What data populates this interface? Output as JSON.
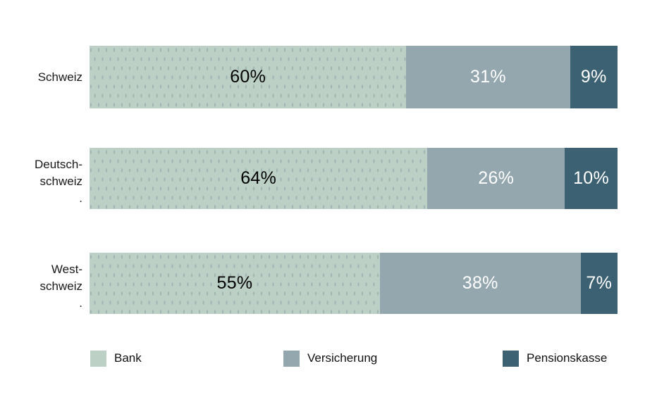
{
  "chart_data": {
    "type": "bar",
    "orientation": "horizontal",
    "stacked": true,
    "title": "",
    "xlabel": "",
    "ylabel": "",
    "value_unit": "%",
    "xlim": [
      0,
      100
    ],
    "grid": false,
    "legend_position": "bottom",
    "categories": [
      "Schweiz",
      "Deutsch-schweiz .",
      "West-schweiz ."
    ],
    "series": [
      {
        "name": "Bank",
        "color": "#bdd0c6",
        "label_color": "#000000",
        "values": [
          60,
          64,
          55
        ]
      },
      {
        "name": "Versicherung",
        "color": "#94a7af",
        "label_color": "#ffffff",
        "values": [
          31,
          26,
          38
        ]
      },
      {
        "name": "Pensionskasse",
        "color": "#3c6173",
        "label_color": "#ffffff",
        "values": [
          9,
          10,
          7
        ]
      }
    ],
    "rows": [
      {
        "label_lines": [
          "Schweiz"
        ],
        "segment_labels": [
          "60%",
          "31%",
          "9%"
        ]
      },
      {
        "label_lines": [
          "Deutsch-",
          "schweiz",
          "."
        ],
        "segment_labels": [
          "64%",
          "26%",
          "10%"
        ]
      },
      {
        "label_lines": [
          "West-",
          "schweiz",
          "."
        ],
        "segment_labels": [
          "55%",
          "38%",
          "7%"
        ]
      }
    ],
    "legend": [
      "Bank",
      "Versicherung",
      "Pensionskasse"
    ]
  },
  "colors": {
    "background": "#ffffff",
    "text": "#111111"
  }
}
